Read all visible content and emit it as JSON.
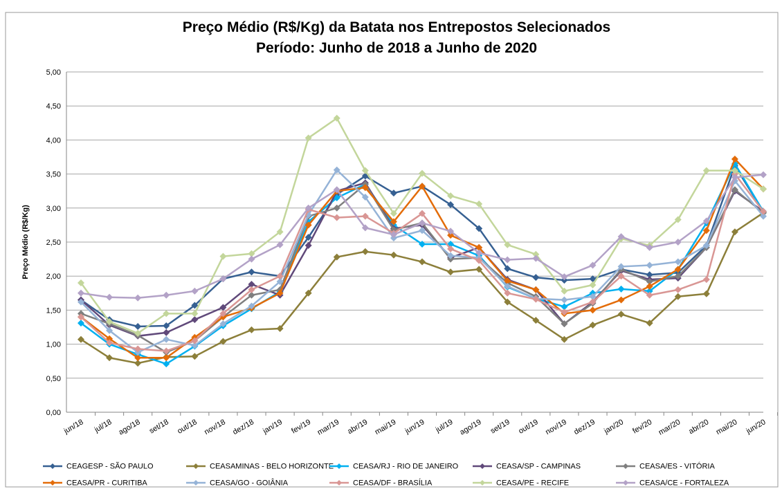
{
  "chart_data": {
    "type": "line",
    "title": "Preço Médio (R$/Kg) da Batata nos Entrepostos Selecionados",
    "subtitle": "Período: Junho de 2018 a Junho de 2020",
    "y_label": "Preço Médio (R$/Kg)",
    "categories": [
      "jun/18",
      "jul/18",
      "ago/18",
      "set/18",
      "out/18",
      "nov/18",
      "dez/18",
      "jan/19",
      "fev/19",
      "mar/19",
      "abr/19",
      "mai/19",
      "jun/19",
      "jul/19",
      "ago/19",
      "set/19",
      "out/19",
      "nov/19",
      "dez/19",
      "jan/20",
      "fev/20",
      "mar/20",
      "abr/20",
      "mai/20",
      "jun/20"
    ],
    "ylim": [
      0,
      5
    ],
    "yticks": [
      {
        "value": 0,
        "label": "0,00"
      },
      {
        "value": 0.5,
        "label": "0,50"
      },
      {
        "value": 1,
        "label": "1,00"
      },
      {
        "value": 1.5,
        "label": "1,50"
      },
      {
        "value": 2,
        "label": "2,00"
      },
      {
        "value": 2.5,
        "label": "2,50"
      },
      {
        "value": 3,
        "label": "3,00"
      },
      {
        "value": 3.5,
        "label": "3,50"
      },
      {
        "value": 4,
        "label": "4,00"
      },
      {
        "value": 4.5,
        "label": "4,50"
      },
      {
        "value": 5,
        "label": "5,00"
      }
    ],
    "grid": true,
    "legend": "bottom",
    "series": [
      {
        "name": "CEAGESP - SÃO PAULO",
        "color": "#366092",
        "values": [
          1.65,
          1.36,
          1.26,
          1.27,
          1.57,
          1.96,
          2.06,
          2.0,
          2.57,
          3.2,
          3.47,
          3.22,
          3.32,
          3.05,
          2.7,
          2.11,
          1.98,
          1.94,
          1.96,
          2.1,
          2.02,
          2.05,
          2.45,
          3.62,
          2.95
        ]
      },
      {
        "name": "CEASAMINAS - BELO HORIZONTE",
        "color": "#8c7f3a",
        "values": [
          1.07,
          0.8,
          0.72,
          0.81,
          0.82,
          1.04,
          1.21,
          1.23,
          1.75,
          2.28,
          2.36,
          2.31,
          2.21,
          2.06,
          2.1,
          1.62,
          1.35,
          1.07,
          1.28,
          1.44,
          1.31,
          1.7,
          1.74,
          2.65,
          2.93
        ]
      },
      {
        "name": "CEASA/RJ - RIO DE JANEIRO",
        "color": "#00b0f0",
        "values": [
          1.31,
          1.0,
          0.85,
          0.71,
          0.97,
          1.27,
          1.52,
          1.77,
          2.8,
          3.15,
          3.35,
          2.75,
          2.47,
          2.47,
          2.3,
          1.84,
          1.67,
          1.55,
          1.75,
          1.81,
          1.78,
          2.1,
          2.78,
          3.65,
          2.95
        ]
      },
      {
        "name": "CEASA/SP - CAMPINAS",
        "color": "#60497a",
        "values": [
          1.65,
          1.28,
          1.12,
          1.17,
          1.36,
          1.54,
          1.88,
          1.72,
          2.45,
          3.25,
          3.37,
          2.7,
          2.75,
          2.27,
          2.42,
          1.95,
          1.8,
          1.3,
          1.62,
          2.08,
          1.95,
          1.97,
          2.42,
          3.25,
          2.95
        ]
      },
      {
        "name": "CEASA/ES - VITÓRIA",
        "color": "#7f7f7f",
        "values": [
          1.45,
          1.3,
          1.13,
          0.88,
          1.05,
          1.4,
          1.72,
          1.8,
          2.88,
          3.0,
          3.35,
          2.68,
          2.78,
          2.25,
          2.27,
          1.9,
          1.7,
          1.3,
          1.6,
          2.1,
          1.92,
          2.0,
          2.42,
          3.27,
          2.93
        ]
      },
      {
        "name": "CEASA/PR - CURITIBA",
        "color": "#e36c09",
        "values": [
          1.4,
          1.08,
          0.8,
          0.8,
          1.1,
          1.4,
          1.53,
          1.75,
          2.75,
          3.25,
          3.3,
          2.8,
          3.32,
          2.6,
          2.42,
          1.93,
          1.8,
          1.45,
          1.5,
          1.65,
          1.85,
          2.1,
          2.67,
          3.72,
          3.28
        ]
      },
      {
        "name": "CEASA/GO - GOIÂNIA",
        "color": "#95b3d7",
        "values": [
          1.62,
          1.2,
          0.88,
          1.07,
          0.98,
          1.3,
          1.56,
          1.92,
          2.9,
          3.56,
          3.16,
          2.56,
          2.67,
          2.3,
          2.27,
          1.85,
          1.67,
          1.65,
          1.7,
          2.14,
          2.16,
          2.21,
          2.45,
          3.4,
          2.88
        ]
      },
      {
        "name": "CEASA/DF - BRASÍLIA",
        "color": "#d99694",
        "values": [
          1.4,
          1.02,
          0.93,
          0.9,
          1.05,
          1.45,
          1.8,
          2.0,
          2.98,
          2.86,
          2.88,
          2.63,
          2.92,
          2.4,
          2.23,
          1.75,
          1.66,
          1.47,
          1.62,
          2.0,
          1.72,
          1.8,
          1.95,
          3.5,
          2.95
        ]
      },
      {
        "name": "CEASA/PE - RECIFE",
        "color": "#c3d69b",
        "values": [
          1.9,
          1.33,
          1.16,
          1.45,
          1.45,
          2.29,
          2.33,
          2.65,
          4.03,
          4.32,
          3.55,
          2.92,
          3.51,
          3.18,
          3.06,
          2.46,
          2.32,
          1.78,
          1.87,
          2.55,
          2.45,
          2.83,
          3.55,
          3.55,
          3.28
        ]
      },
      {
        "name": "CEASA/CE - FORTALEZA",
        "color": "#b3a2c7",
        "values": [
          1.75,
          1.69,
          1.68,
          1.72,
          1.78,
          1.96,
          2.25,
          2.46,
          3.0,
          3.27,
          2.71,
          2.61,
          2.78,
          2.66,
          2.34,
          2.24,
          2.26,
          1.99,
          2.16,
          2.58,
          2.42,
          2.5,
          2.81,
          3.45,
          3.49
        ]
      }
    ]
  }
}
